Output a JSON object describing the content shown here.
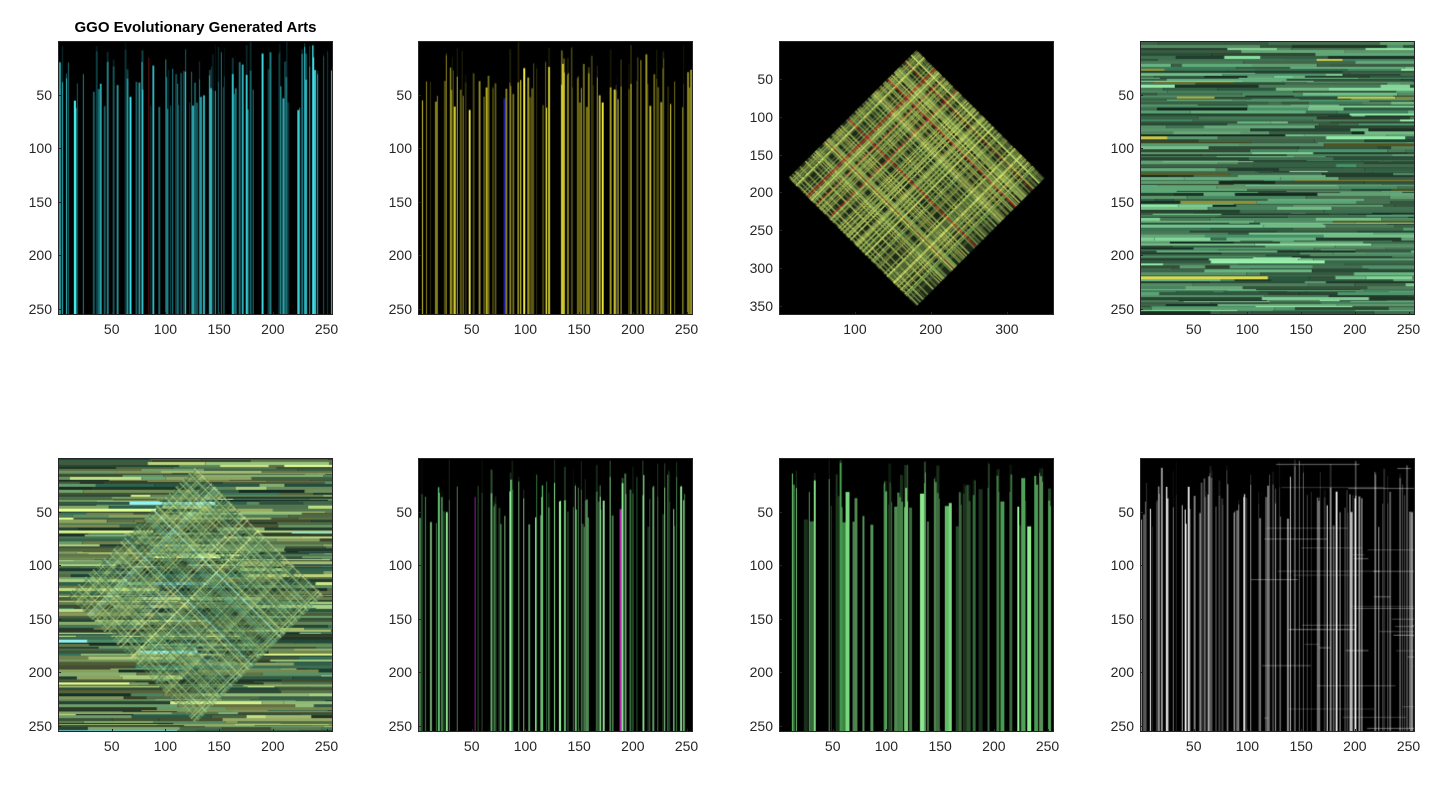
{
  "title": "GGO Evolutionary Generated Arts",
  "panels": [
    {
      "style": "vertical",
      "base": "#1a7d86",
      "accent": "#40e0e8",
      "rare": "#a01818",
      "xticks": [
        "50",
        "100",
        "150",
        "200",
        "250"
      ],
      "yticks": [
        "50",
        "100",
        "150",
        "200",
        "250"
      ],
      "xrange": [
        0,
        256
      ],
      "yrange": [
        0,
        256
      ]
    },
    {
      "style": "vertical",
      "base": "#6f6a10",
      "accent": "#e2dc3a",
      "rare": "#1a1aa0",
      "xticks": [
        "50",
        "100",
        "150",
        "200",
        "250"
      ],
      "yticks": [
        "50",
        "100",
        "150",
        "200",
        "250"
      ],
      "xrange": [
        0,
        256
      ],
      "yrange": [
        0,
        256
      ]
    },
    {
      "style": "diamond",
      "base": "#5f8f4a",
      "accent": "#e9e96a",
      "rare": "#d02020",
      "xticks": [
        "100",
        "200",
        "300"
      ],
      "yticks": [
        "50",
        "100",
        "150",
        "200",
        "250",
        "300",
        "350"
      ],
      "xrange": [
        0,
        362
      ],
      "yrange": [
        0,
        362
      ]
    },
    {
      "style": "horizontal",
      "base": "#3d7f5c",
      "accent": "#8fe0a0",
      "rare": "#c9c94a",
      "xticks": [
        "50",
        "100",
        "150",
        "200",
        "250"
      ],
      "yticks": [
        "50",
        "100",
        "150",
        "200",
        "250"
      ],
      "xrange": [
        0,
        256
      ],
      "yrange": [
        0,
        256
      ]
    },
    {
      "style": "horizontal-diamond",
      "base": "#2f6f5a",
      "accent": "#d8f08a",
      "rare": "#8ff0f0",
      "xticks": [
        "50",
        "100",
        "150",
        "200",
        "250"
      ],
      "yticks": [
        "50",
        "100",
        "150",
        "200",
        "250"
      ],
      "xrange": [
        0,
        256
      ],
      "yrange": [
        0,
        256
      ]
    },
    {
      "style": "vertical",
      "base": "#4aa85a",
      "accent": "#a6f5a6",
      "rare": "#a020a0",
      "xticks": [
        "50",
        "100",
        "150",
        "200",
        "250"
      ],
      "yticks": [
        "50",
        "100",
        "150",
        "200",
        "250"
      ],
      "xrange": [
        0,
        256
      ],
      "yrange": [
        0,
        256
      ]
    },
    {
      "style": "vertical-wide",
      "base": "#3e8a46",
      "accent": "#90e890",
      "rare": "#8a1a8a",
      "xticks": [
        "50",
        "100",
        "150",
        "200",
        "250"
      ],
      "yticks": [
        "50",
        "100",
        "150",
        "200",
        "250"
      ],
      "xrange": [
        0,
        256
      ],
      "yrange": [
        0,
        256
      ]
    },
    {
      "style": "vertical-gray",
      "base": "#5a5a5a",
      "accent": "#e0e0e0",
      "rare": "#ffffff",
      "xticks": [
        "50",
        "100",
        "150",
        "200",
        "250"
      ],
      "yticks": [
        "50",
        "100",
        "150",
        "200",
        "250"
      ],
      "xrange": [
        0,
        256
      ],
      "yrange": [
        0,
        256
      ]
    }
  ]
}
